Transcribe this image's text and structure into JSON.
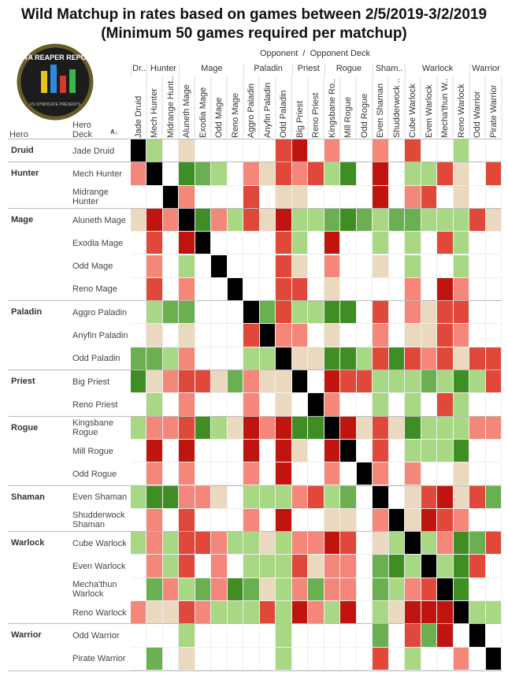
{
  "title": [
    "Wild Matchup in rates based on games between 2/5/2019-3/2/2019",
    "(Minimum 50 games required per matchup)"
  ],
  "logo": {
    "text": "DATA REAPER REPORT",
    "subtext": "VS SYNDICATE PRESENTS"
  },
  "column_header": "Opponent  /  Opponent Deck",
  "row_headers": [
    "Hero",
    "Hero Deck"
  ],
  "column_groups": [
    {
      "label": "Dr..",
      "span": 1
    },
    {
      "label": "Hunter",
      "span": 2
    },
    {
      "label": "Mage",
      "span": 4
    },
    {
      "label": "Paladin",
      "span": 3
    },
    {
      "label": "Priest",
      "span": 2
    },
    {
      "label": "Rogue",
      "span": 3
    },
    {
      "label": "Sham..",
      "span": 2
    },
    {
      "label": "Warlock",
      "span": 4
    },
    {
      "label": "Warrior",
      "span": 2
    }
  ],
  "columns": [
    "Jade Druid",
    "Mech Hunter",
    "Midrange Hunt..",
    "Aluneth Mage",
    "Exodia Mage",
    "Odd Mage",
    "Reno Mage",
    "Aggro Paladin",
    "Anyfin Paladin",
    "Odd Paladin",
    "Big Priest",
    "Reno Priest",
    "Kingsbane Ro..",
    "Mill Rogue",
    "Odd Rogue",
    "Even Shaman",
    "Shudderwock ..",
    "Cube Warlock",
    "Even Warlock",
    "Mecha'thun W..",
    "Reno Warlock",
    "Odd Warrior",
    "Pirate Warrior"
  ],
  "row_groups": [
    {
      "label": "Druid",
      "decks": [
        {
          "name": "Jade Druid",
          "cells": [
            "#000000",
            "#a8d883",
            null,
            "#ead9bf",
            null,
            null,
            null,
            null,
            null,
            "#e0483a",
            "#c0140f",
            null,
            "#f4877a",
            null,
            null,
            "#f4877a",
            null,
            "#e0483a",
            null,
            null,
            "#a8d883",
            null,
            null
          ]
        }
      ]
    },
    {
      "label": "Hunter",
      "decks": [
        {
          "name": "Mech Hunter",
          "cells": [
            "#f4877a",
            "#000000",
            null,
            "#3e8e24",
            "#6aaf50",
            "#a8d883",
            null,
            "#f4877a",
            "#ead9bf",
            "#e0483a",
            "#f4877a",
            "#e0483a",
            "#a8d883",
            "#3e8e24",
            null,
            "#c0140f",
            null,
            "#a8d883",
            "#a8d883",
            "#e0483a",
            "#ead9bf",
            null,
            "#e0483a"
          ]
        },
        {
          "name": "Midrange Hunter",
          "cells": [
            null,
            null,
            "#000000",
            "#f4877a",
            null,
            null,
            null,
            "#e0483a",
            null,
            "#ead9bf",
            "#ead9bf",
            null,
            null,
            null,
            null,
            "#c0140f",
            null,
            "#f4877a",
            "#e0483a",
            null,
            "#ead9bf",
            null,
            null
          ]
        }
      ]
    },
    {
      "label": "Mage",
      "decks": [
        {
          "name": "Aluneth Mage",
          "cells": [
            "#ead9bf",
            "#c0140f",
            "#f4877a",
            "#000000",
            "#3e8e24",
            "#f4877a",
            "#a8d883",
            "#e0483a",
            "#ead9bf",
            "#c0140f",
            "#a8d883",
            "#a8d883",
            "#6aaf50",
            "#3e8e24",
            "#6aaf50",
            "#a8d883",
            "#6aaf50",
            "#6aaf50",
            "#a8d883",
            "#a8d883",
            "#a8d883",
            "#e0483a",
            "#ead9bf"
          ]
        },
        {
          "name": "Exodia Mage",
          "cells": [
            null,
            "#e0483a",
            null,
            "#c0140f",
            "#000000",
            null,
            null,
            null,
            null,
            "#e0483a",
            "#a8d883",
            null,
            "#c0140f",
            null,
            null,
            "#a8d883",
            null,
            "#a8d883",
            null,
            "#e0483a",
            "#a8d883",
            null,
            null
          ]
        },
        {
          "name": "Odd Mage",
          "cells": [
            null,
            "#f4877a",
            null,
            "#a8d883",
            null,
            "#000000",
            null,
            null,
            null,
            "#e0483a",
            "#ead9bf",
            null,
            "#f4877a",
            null,
            null,
            "#ead9bf",
            null,
            "#a8d883",
            null,
            null,
            "#a8d883",
            null,
            null
          ]
        },
        {
          "name": "Reno Mage",
          "cells": [
            null,
            "#e0483a",
            null,
            "#f4877a",
            null,
            null,
            "#000000",
            null,
            null,
            "#e0483a",
            "#e0483a",
            null,
            "#ead9bf",
            null,
            null,
            null,
            null,
            "#f4877a",
            null,
            "#c0140f",
            "#f4877a",
            null,
            null
          ]
        }
      ]
    },
    {
      "label": "Paladin",
      "decks": [
        {
          "name": "Aggro Paladin",
          "cells": [
            null,
            "#a8d883",
            "#6aaf50",
            "#6aaf50",
            null,
            null,
            null,
            "#000000",
            "#6aaf50",
            "#e0483a",
            "#a8d883",
            "#a8d883",
            "#3e8e24",
            "#3e8e24",
            null,
            "#e0483a",
            null,
            "#f4877a",
            "#ead9bf",
            "#e0483a",
            "#e0483a",
            null,
            null
          ]
        },
        {
          "name": "Anyfin Paladin",
          "cells": [
            null,
            "#ead9bf",
            null,
            "#ead9bf",
            null,
            null,
            null,
            "#e0483a",
            "#000000",
            "#f4877a",
            "#f4877a",
            null,
            "#ead9bf",
            null,
            null,
            "#f4877a",
            null,
            "#ead9bf",
            "#ead9bf",
            "#e0483a",
            "#f4877a",
            null,
            null
          ]
        },
        {
          "name": "Odd Paladin",
          "cells": [
            "#6aaf50",
            "#6aaf50",
            "#a8d883",
            "#f4877a",
            null,
            null,
            null,
            "#a8d883",
            "#a8d883",
            "#000000",
            "#ead9bf",
            "#ead9bf",
            "#3e8e24",
            "#3e8e24",
            "#a8d883",
            "#e0483a",
            "#3e8e24",
            "#e0483a",
            "#f4877a",
            "#e0483a",
            "#ead9bf",
            "#e0483a",
            "#e0483a"
          ]
        }
      ]
    },
    {
      "label": "Priest",
      "decks": [
        {
          "name": "Big Priest",
          "cells": [
            "#3e8e24",
            "#ead9bf",
            "#f4877a",
            "#e0483a",
            "#e0483a",
            "#ead9bf",
            "#6aaf50",
            "#f4877a",
            "#ead9bf",
            "#ead9bf",
            "#000000",
            null,
            "#c0140f",
            "#e0483a",
            "#e0483a",
            "#a8d883",
            "#a8d883",
            "#a8d883",
            "#6aaf50",
            "#a8d883",
            "#3e8e24",
            "#a8d883",
            "#e0483a"
          ]
        },
        {
          "name": "Reno Priest",
          "cells": [
            null,
            "#a8d883",
            null,
            "#f4877a",
            null,
            null,
            null,
            "#f4877a",
            null,
            "#ead9bf",
            null,
            "#000000",
            "#f4877a",
            null,
            null,
            "#a8d883",
            null,
            "#a8d883",
            null,
            "#e0483a",
            "#a8d883",
            null,
            null
          ]
        }
      ]
    },
    {
      "label": "Rogue",
      "decks": [
        {
          "name": "Kingsbane Rogue",
          "cells": [
            "#a8d883",
            "#f4877a",
            "#f4877a",
            "#e0483a",
            "#3e8e24",
            "#a8d883",
            "#ead9bf",
            "#c0140f",
            "#f4877a",
            "#c0140f",
            "#3e8e24",
            "#3e8e24",
            "#000000",
            "#c0140f",
            "#ead9bf",
            "#e0483a",
            "#ead9bf",
            "#3e8e24",
            "#a8d883",
            "#a8d883",
            "#a8d883",
            "#f4877a",
            "#f4877a"
          ]
        },
        {
          "name": "Mill Rogue",
          "cells": [
            null,
            "#c0140f",
            null,
            "#c0140f",
            null,
            null,
            null,
            "#c0140f",
            null,
            "#c0140f",
            "#ead9bf",
            null,
            "#c0140f",
            "#000000",
            null,
            "#e0483a",
            null,
            "#a8d883",
            "#a8d883",
            "#a8d883",
            "#3e8e24",
            null,
            null
          ]
        },
        {
          "name": "Odd Rogue",
          "cells": [
            null,
            "#f4877a",
            null,
            "#f4877a",
            null,
            null,
            null,
            "#f4877a",
            null,
            "#c0140f",
            null,
            null,
            "#f4877a",
            null,
            "#000000",
            "#f4877a",
            null,
            "#f4877a",
            null,
            null,
            "#ead9bf",
            null,
            null
          ]
        }
      ]
    },
    {
      "label": "Shaman",
      "decks": [
        {
          "name": "Even Shaman",
          "cells": [
            "#a8d883",
            "#3e8e24",
            "#3e8e24",
            "#f4877a",
            "#f4877a",
            "#ead9bf",
            null,
            "#a8d883",
            "#a8d883",
            "#a8d883",
            "#f4877a",
            "#e0483a",
            "#a8d883",
            "#6aaf50",
            null,
            "#000000",
            null,
            "#ead9bf",
            "#e0483a",
            "#c0140f",
            "#ead9bf",
            "#e0483a",
            "#6aaf50"
          ]
        },
        {
          "name": "Shudderwock Shaman",
          "cells": [
            null,
            "#f4877a",
            null,
            "#e0483a",
            null,
            null,
            null,
            "#f4877a",
            null,
            "#c0140f",
            null,
            null,
            "#ead9bf",
            "#ead9bf",
            null,
            "#f4877a",
            "#000000",
            "#ead9bf",
            "#c0140f",
            "#e0483a",
            "#f4877a",
            null,
            null
          ]
        }
      ]
    },
    {
      "label": "Warlock",
      "decks": [
        {
          "name": "Cube Warlock",
          "cells": [
            "#a8d883",
            "#f4877a",
            "#a8d883",
            "#e0483a",
            "#e0483a",
            "#f4877a",
            "#a8d883",
            "#a8d883",
            "#ead9bf",
            "#a8d883",
            "#f4877a",
            "#f4877a",
            "#c0140f",
            "#e0483a",
            null,
            "#ead9bf",
            "#a8d883",
            "#000000",
            "#a8d883",
            "#f4877a",
            "#3e8e24",
            "#6aaf50",
            "#e0483a"
          ]
        },
        {
          "name": "Even Warlock",
          "cells": [
            null,
            "#f4877a",
            "#a8d883",
            "#e0483a",
            null,
            "#f4877a",
            null,
            "#a8d883",
            "#a8d883",
            "#a8d883",
            "#e0483a",
            "#ead9bf",
            "#f4877a",
            "#f4877a",
            null,
            "#6aaf50",
            "#3e8e24",
            "#a8d883",
            "#000000",
            "#a8d883",
            "#3e8e24",
            "#e0483a",
            null
          ]
        },
        {
          "name": "Mecha'thun Warlock",
          "cells": [
            null,
            "#6aaf50",
            "#f4877a",
            "#a8d883",
            "#6aaf50",
            "#f4877a",
            "#3e8e24",
            "#6aaf50",
            "#ead9bf",
            "#a8d883",
            "#f4877a",
            "#6aaf50",
            "#f4877a",
            "#f4877a",
            null,
            "#6aaf50",
            "#a8d883",
            "#f4877a",
            "#e0483a",
            "#000000",
            "#3e8e24",
            null,
            null
          ]
        },
        {
          "name": "Reno Warlock",
          "cells": [
            "#f4877a",
            "#ead9bf",
            "#ead9bf",
            "#e0483a",
            "#f4877a",
            "#a8d883",
            "#a8d883",
            "#a8d883",
            "#e0483a",
            "#a8d883",
            "#c0140f",
            "#f4877a",
            "#a8d883",
            "#c0140f",
            null,
            "#a8d883",
            "#ead9bf",
            "#c0140f",
            "#c0140f",
            "#c0140f",
            "#000000",
            "#a8d883",
            "#a8d883"
          ]
        }
      ]
    },
    {
      "label": "Warrior",
      "decks": [
        {
          "name": "Odd Warrior",
          "cells": [
            null,
            null,
            null,
            "#a8d883",
            null,
            null,
            null,
            null,
            null,
            "#a8d883",
            null,
            null,
            null,
            null,
            null,
            "#6aaf50",
            null,
            "#e0483a",
            "#6aaf50",
            "#c0140f",
            null,
            "#000000",
            null
          ]
        },
        {
          "name": "Pirate Warrior",
          "cells": [
            null,
            "#6aaf50",
            null,
            "#ead9bf",
            null,
            null,
            null,
            null,
            null,
            "#a8d883",
            null,
            null,
            null,
            null,
            null,
            "#e0483a",
            null,
            "#a8d883",
            null,
            null,
            "#f4877a",
            null,
            "#000000"
          ]
        }
      ]
    }
  ]
}
